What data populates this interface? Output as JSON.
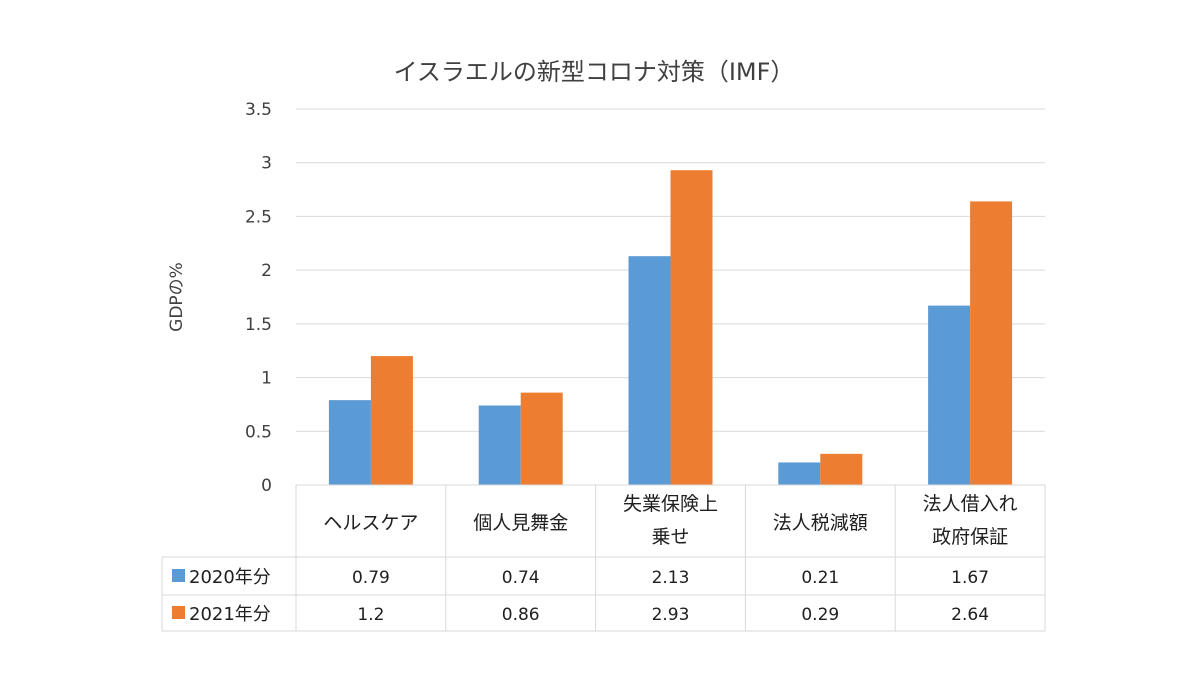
{
  "chart_data": {
    "type": "bar",
    "title": "イスラエルの新型コロナ対策（IMF）",
    "ylabel": "GDPの%",
    "xlabel": "",
    "ylim": [
      0,
      3.5
    ],
    "yticks": [
      "0",
      "0.5",
      "1",
      "1.5",
      "2",
      "2.5",
      "3",
      "3.5"
    ],
    "ytick_values": [
      0,
      0.5,
      1,
      1.5,
      2,
      2.5,
      3,
      3.5
    ],
    "grid": true,
    "categories": [
      [
        "ヘルスケア"
      ],
      [
        "個人見舞金"
      ],
      [
        "失業保険上",
        "乗せ"
      ],
      [
        "法人税減額"
      ],
      [
        "法人借入れ",
        "政府保証"
      ]
    ],
    "series": [
      {
        "name": "2020年分",
        "color": "#5b9bd5",
        "values": [
          0.79,
          0.74,
          2.13,
          0.21,
          1.67
        ],
        "labels": [
          "0.79",
          "0.74",
          "2.13",
          "0.21",
          "1.67"
        ]
      },
      {
        "name": "2021年分",
        "color": "#ed7d31",
        "values": [
          1.2,
          0.86,
          2.93,
          0.29,
          2.64
        ],
        "labels": [
          "1.2",
          "0.86",
          "2.93",
          "0.29",
          "2.64"
        ]
      }
    ],
    "legend": "data-table"
  }
}
